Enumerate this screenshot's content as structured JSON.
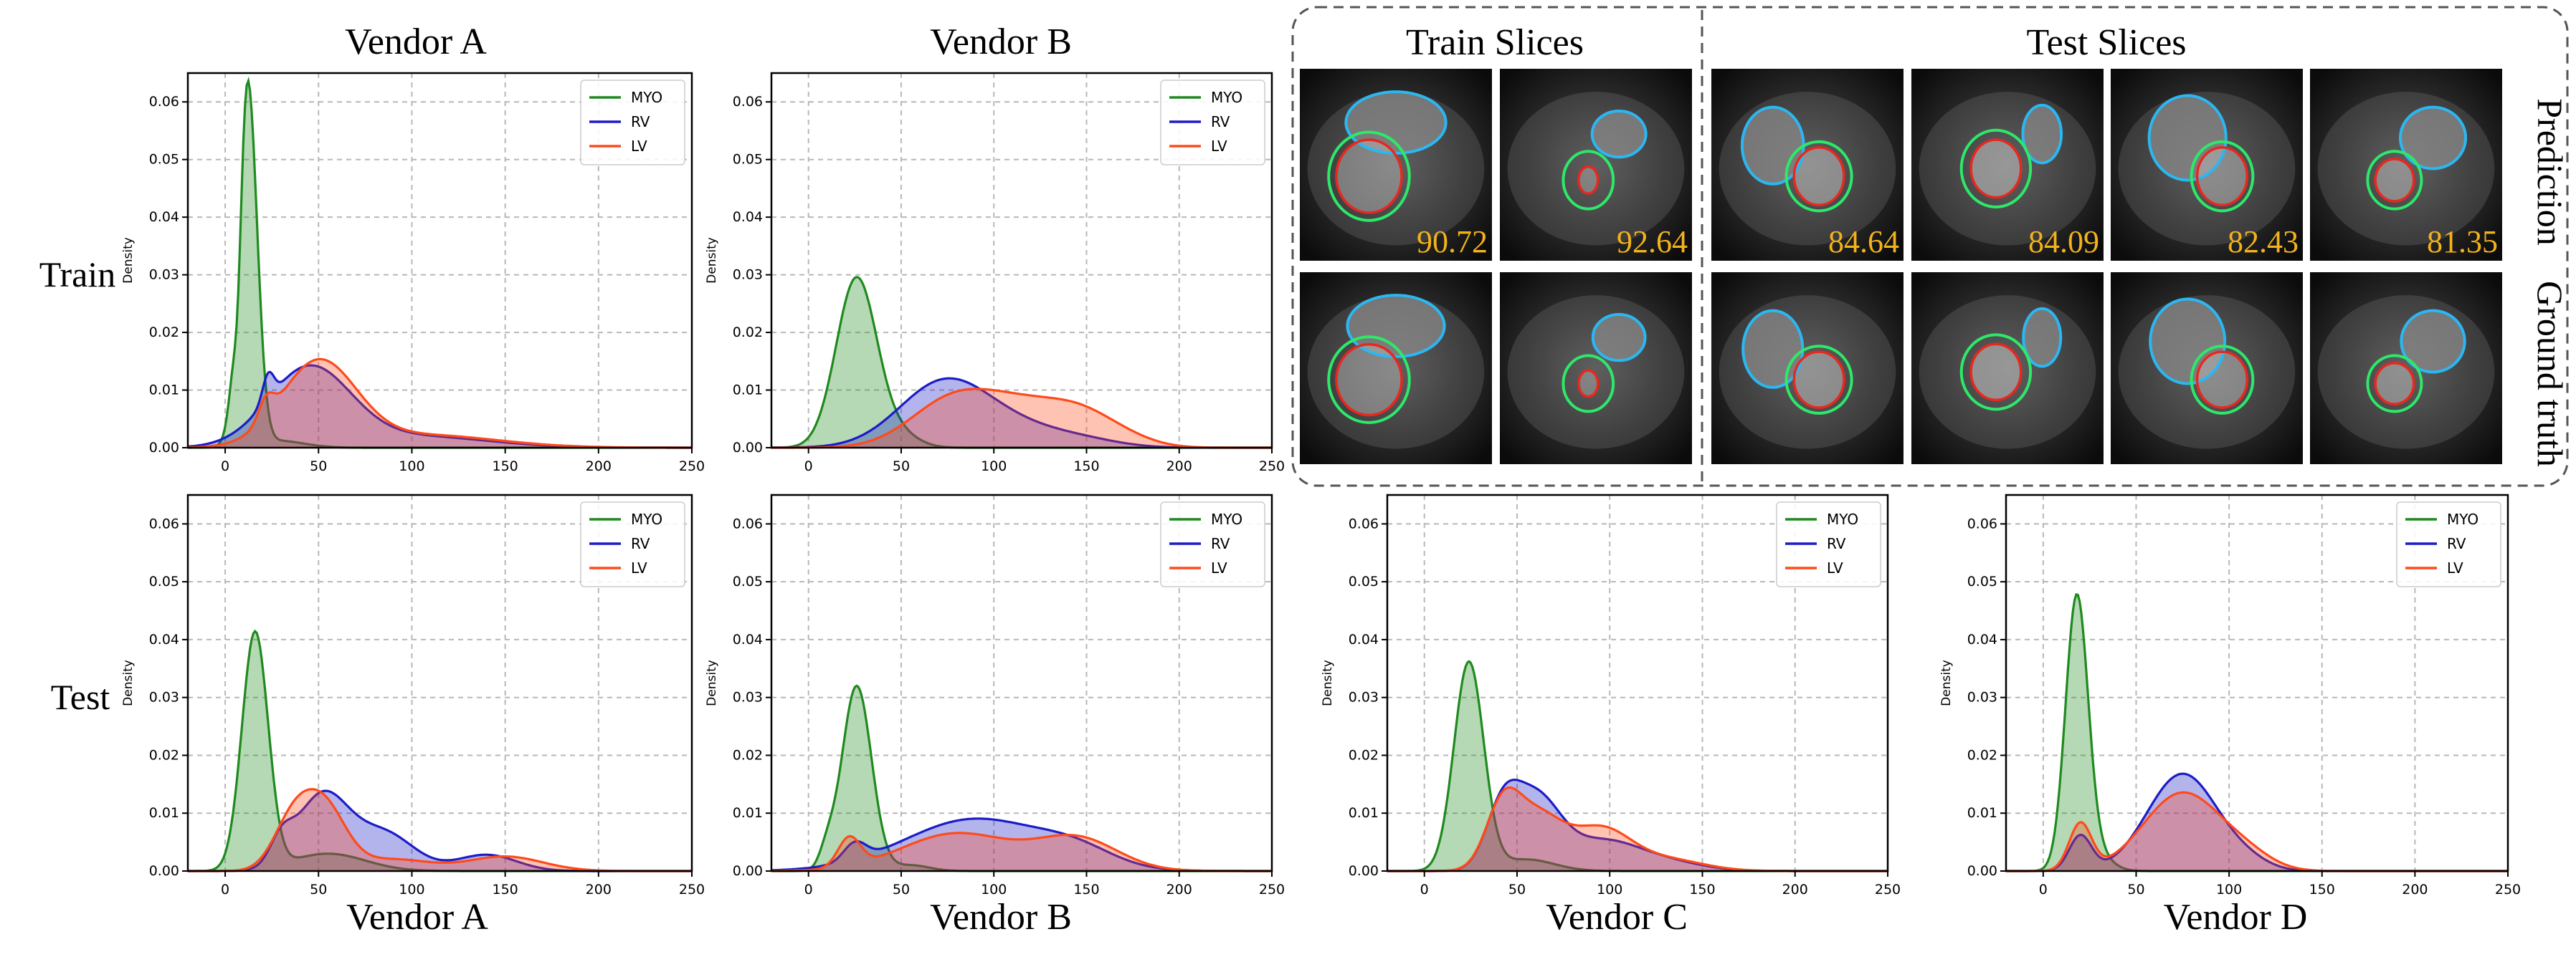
{
  "figure": {
    "row_labels": [
      "Train",
      "Test"
    ],
    "col_titles": [
      "Vendor A",
      "Vendor B"
    ],
    "bottom_labels": [
      "Vendor A",
      "Vendor B",
      "Vendor C",
      "Vendor D"
    ],
    "inset": {
      "train_title": "Train Slices",
      "test_title": "Test Slices",
      "row_labels": [
        "Prediction",
        "Ground truth"
      ],
      "scores": [
        "90.72",
        "92.64",
        "84.64",
        "84.09",
        "82.43",
        "81.35"
      ],
      "contour_colors": {
        "MYO": "#2ee86a",
        "RV": "#2bb7f2",
        "LV": "#e8281e"
      },
      "score_color": "#f2b21b"
    }
  },
  "chart_data": [
    {
      "id": "train-vendor-a",
      "type": "area",
      "xlabel": "",
      "ylabel": "Density",
      "xlim": [
        -20,
        250
      ],
      "ylim": [
        0,
        0.065
      ],
      "xticks": [
        0,
        50,
        100,
        150,
        200,
        250
      ],
      "yticks": [
        0.0,
        0.01,
        0.02,
        0.03,
        0.04,
        0.05,
        0.06
      ],
      "grid": true,
      "legend": "top-right",
      "series": [
        {
          "name": "MYO",
          "color": "#1f8a1f",
          "peaks": [
            [
              12,
              0.0635,
              5
            ],
            [
              7,
              -0.012,
              2
            ],
            [
              28,
              0.0012,
              14
            ]
          ]
        },
        {
          "name": "RV",
          "color": "#1c1cc8",
          "peaks": [
            [
              23,
              0.0045,
              3
            ],
            [
              45,
              0.0135,
              22
            ],
            [
              100,
              0.002,
              40
            ]
          ]
        },
        {
          "name": "LV",
          "color": "#ff4a1a",
          "peaks": [
            [
              22,
              0.0035,
              4
            ],
            [
              50,
              0.0145,
              20
            ],
            [
              105,
              0.0022,
              40
            ]
          ]
        }
      ]
    },
    {
      "id": "train-vendor-b",
      "type": "area",
      "xlabel": "",
      "ylabel": "Density",
      "xlim": [
        -20,
        250
      ],
      "ylim": [
        0,
        0.065
      ],
      "xticks": [
        0,
        50,
        100,
        150,
        200,
        250
      ],
      "yticks": [
        0.0,
        0.01,
        0.02,
        0.03,
        0.04,
        0.05,
        0.06
      ],
      "grid": true,
      "legend": "top-right",
      "series": [
        {
          "name": "MYO",
          "color": "#1f8a1f",
          "peaks": [
            [
              26,
              0.0295,
              11
            ],
            [
              50,
              0.002,
              10
            ]
          ]
        },
        {
          "name": "RV",
          "color": "#1c1cc8",
          "peaks": [
            [
              72,
              0.0105,
              24
            ],
            [
              110,
              0.0035,
              28
            ],
            [
              150,
              0.0008,
              20
            ]
          ]
        },
        {
          "name": "LV",
          "color": "#ff4a1a",
          "peaks": [
            [
              75,
              0.0065,
              22
            ],
            [
              115,
              0.0075,
              28
            ],
            [
              150,
              0.0035,
              18
            ],
            [
              175,
              0.0008,
              15
            ]
          ]
        }
      ]
    },
    {
      "id": "test-vendor-a",
      "type": "area",
      "xlabel": "Vendor A",
      "ylabel": "Density",
      "xlim": [
        -20,
        250
      ],
      "ylim": [
        0,
        0.065
      ],
      "xticks": [
        0,
        50,
        100,
        150,
        200,
        250
      ],
      "yticks": [
        0.0,
        0.01,
        0.02,
        0.03,
        0.04,
        0.05,
        0.06
      ],
      "grid": true,
      "legend": "top-right",
      "series": [
        {
          "name": "MYO",
          "color": "#1f8a1f",
          "peaks": [
            [
              16,
              0.041,
              7
            ],
            [
              55,
              0.003,
              20
            ]
          ]
        },
        {
          "name": "RV",
          "color": "#1c1cc8",
          "peaks": [
            [
              30,
              0.004,
              6
            ],
            [
              52,
              0.013,
              14
            ],
            [
              85,
              0.0065,
              16
            ],
            [
              140,
              0.0028,
              16
            ]
          ]
        },
        {
          "name": "LV",
          "color": "#ff4a1a",
          "peaks": [
            [
              35,
              0.007,
              10
            ],
            [
              52,
              0.0115,
              12
            ],
            [
              90,
              0.002,
              20
            ],
            [
              150,
              0.0025,
              20
            ]
          ]
        }
      ]
    },
    {
      "id": "test-vendor-b",
      "type": "area",
      "xlabel": "Vendor B",
      "ylabel": "Density",
      "xlim": [
        -20,
        250
      ],
      "ylim": [
        0,
        0.065
      ],
      "xticks": [
        0,
        50,
        100,
        150,
        200,
        250
      ],
      "yticks": [
        0.0,
        0.01,
        0.02,
        0.03,
        0.04,
        0.05,
        0.06
      ],
      "grid": true,
      "legend": "top-right",
      "series": [
        {
          "name": "MYO",
          "color": "#1f8a1f",
          "peaks": [
            [
              26,
              0.032,
              8
            ],
            [
              10,
              0.003,
              4
            ],
            [
              55,
              0.001,
              10
            ]
          ]
        },
        {
          "name": "RV",
          "color": "#1c1cc8",
          "peaks": [
            [
              25,
              0.003,
              6
            ],
            [
              90,
              0.009,
              38
            ],
            [
              145,
              0.0025,
              20
            ]
          ]
        },
        {
          "name": "LV",
          "color": "#ff4a1a",
          "peaks": [
            [
              22,
              0.005,
              6
            ],
            [
              80,
              0.0065,
              30
            ],
            [
              145,
              0.0055,
              22
            ]
          ]
        }
      ]
    },
    {
      "id": "test-vendor-c",
      "type": "area",
      "xlabel": "Vendor C",
      "ylabel": "Density",
      "xlim": [
        -20,
        250
      ],
      "ylim": [
        0,
        0.065
      ],
      "xticks": [
        0,
        50,
        100,
        150,
        200,
        250
      ],
      "yticks": [
        0.0,
        0.01,
        0.02,
        0.03,
        0.04,
        0.05,
        0.06
      ],
      "grid": true,
      "legend": "top-right",
      "series": [
        {
          "name": "MYO",
          "color": "#1f8a1f",
          "peaks": [
            [
              24,
              0.036,
              8
            ],
            [
              55,
              0.002,
              15
            ]
          ]
        },
        {
          "name": "RV",
          "color": "#1c1cc8",
          "peaks": [
            [
              42,
              0.0095,
              9
            ],
            [
              60,
              0.012,
              13
            ],
            [
              95,
              0.005,
              20
            ],
            [
              130,
              0.0015,
              20
            ]
          ]
        },
        {
          "name": "LV",
          "color": "#ff4a1a",
          "peaks": [
            [
              42,
              0.0095,
              9
            ],
            [
              60,
              0.0095,
              14
            ],
            [
              95,
              0.007,
              16
            ],
            [
              130,
              0.002,
              20
            ]
          ]
        }
      ]
    },
    {
      "id": "test-vendor-d",
      "type": "area",
      "xlabel": "Vendor D",
      "ylabel": "Density",
      "xlim": [
        -20,
        250
      ],
      "ylim": [
        0,
        0.065
      ],
      "xticks": [
        0,
        50,
        100,
        150,
        200,
        250
      ],
      "yticks": [
        0.0,
        0.01,
        0.02,
        0.03,
        0.04,
        0.05,
        0.06
      ],
      "grid": true,
      "legend": "top-right",
      "series": [
        {
          "name": "MYO",
          "color": "#1f8a1f",
          "peaks": [
            [
              18,
              0.0465,
              6
            ],
            [
              28,
              0.003,
              8
            ]
          ]
        },
        {
          "name": "RV",
          "color": "#1c1cc8",
          "peaks": [
            [
              20,
              0.006,
              6
            ],
            [
              75,
              0.0168,
              19
            ],
            [
              110,
              0.0012,
              12
            ]
          ]
        },
        {
          "name": "LV",
          "color": "#ff4a1a",
          "peaks": [
            [
              20,
              0.008,
              6
            ],
            [
              75,
              0.0135,
              21
            ],
            [
              110,
              0.002,
              14
            ]
          ]
        }
      ]
    }
  ]
}
